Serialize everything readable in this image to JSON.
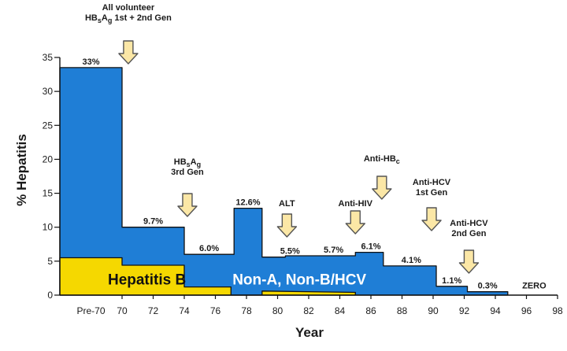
{
  "chart_data": {
    "type": "area",
    "xlabel": "Year",
    "ylabel": "% Hepatitis",
    "ylim": [
      0,
      35
    ],
    "y_ticks": [
      0,
      5,
      10,
      15,
      20,
      25,
      30,
      35
    ],
    "x_ticks": [
      "Pre-70",
      "70",
      "72",
      "74",
      "76",
      "78",
      "80",
      "82",
      "84",
      "86",
      "88",
      "90",
      "92",
      "94",
      "96",
      "98"
    ],
    "series": [
      {
        "name": "Non-A, Non-B/HCV",
        "color": "#1f7ed6",
        "points": [
          [
            66,
            33.5
          ],
          [
            70,
            33.5
          ],
          [
            70,
            10
          ],
          [
            74,
            10
          ],
          [
            74,
            6
          ],
          [
            77.2,
            6
          ],
          [
            77.2,
            12.8
          ],
          [
            79,
            12.8
          ],
          [
            79,
            5.6
          ],
          [
            80.5,
            5.6
          ],
          [
            80.5,
            5.8
          ],
          [
            85,
            5.8
          ],
          [
            85,
            6.3
          ],
          [
            86.8,
            6.3
          ],
          [
            86.8,
            4.3
          ],
          [
            90.2,
            4.3
          ],
          [
            90.2,
            1.3
          ],
          [
            92.2,
            1.3
          ],
          [
            92.2,
            0.5
          ],
          [
            94.8,
            0.5
          ],
          [
            94.8,
            0
          ]
        ]
      },
      {
        "name": "Hepatitis B",
        "color": "#f5d800",
        "points": [
          [
            66,
            5.5
          ],
          [
            70,
            5.5
          ],
          [
            70,
            4.4
          ],
          [
            74,
            4.4
          ],
          [
            74,
            1.2
          ],
          [
            77,
            1.2
          ],
          [
            77,
            0
          ],
          [
            79,
            0
          ],
          [
            79,
            0.6
          ],
          [
            85,
            0.4
          ],
          [
            85,
            0
          ]
        ]
      }
    ],
    "value_labels": [
      {
        "text": "33%",
        "x": 68,
        "y": 33.5
      },
      {
        "text": "9.7%",
        "x": 72,
        "y": 10
      },
      {
        "text": "6.0%",
        "x": 75.6,
        "y": 6
      },
      {
        "text": "12.6%",
        "x": 78.1,
        "y": 12.8
      },
      {
        "text": "5.5%",
        "x": 80.8,
        "y": 5.6
      },
      {
        "text": "5.7%",
        "x": 83.6,
        "y": 5.8
      },
      {
        "text": "6.1%",
        "x": 86,
        "y": 6.3
      },
      {
        "text": "4.1%",
        "x": 88.6,
        "y": 4.3
      },
      {
        "text": "1.1%",
        "x": 91.2,
        "y": 1.3
      },
      {
        "text": "0.3%",
        "x": 93.5,
        "y": 0.5
      },
      {
        "text": "ZERO",
        "x": 96.5,
        "y": 0.5
      }
    ],
    "area_labels": [
      {
        "text": "Hepatitis B",
        "x": 71.6,
        "y": 2.35,
        "color": "#111111"
      },
      {
        "text": "Non-A, Non-B/HCV",
        "x": 81.4,
        "y": 2.35,
        "color": "#ffffff"
      }
    ],
    "events": [
      {
        "lines": [
          "All volunteer",
          "HBsAg 1st + 2nd Gen"
        ],
        "x": 70.4
      },
      {
        "lines": [
          "HBsAg",
          "3rd Gen"
        ],
        "x": 74.2
      },
      {
        "lines": [
          "ALT"
        ],
        "x": 80.6
      },
      {
        "lines": [
          "Anti-HIV"
        ],
        "x": 85
      },
      {
        "lines": [
          "Anti-HBc"
        ],
        "x": 86.7
      },
      {
        "lines": [
          "Anti-HCV",
          "1st Gen"
        ],
        "x": 89.9
      },
      {
        "lines": [
          "Anti-HCV",
          "2nd Gen"
        ],
        "x": 92.3
      }
    ]
  }
}
